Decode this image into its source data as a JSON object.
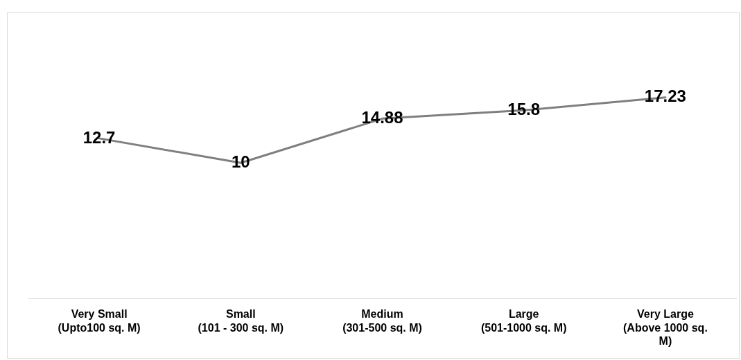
{
  "chart_data": {
    "type": "line",
    "categories": [
      "Very Small\n(Upto100 sq. M)",
      "Small\n(101 - 300 sq. M)",
      "Medium\n(301-500 sq. M)",
      "Large\n(501-1000 sq. M)",
      "Very Large\n(Above 1000 sq.\nM)"
    ],
    "series": [
      {
        "color": "#7f7f7f",
        "values": [
          12.7,
          10,
          14.88,
          15.8,
          17.23
        ]
      }
    ],
    "data_labels": true,
    "grid": false,
    "legend": false,
    "marker": "none",
    "line_style": "solid"
  }
}
